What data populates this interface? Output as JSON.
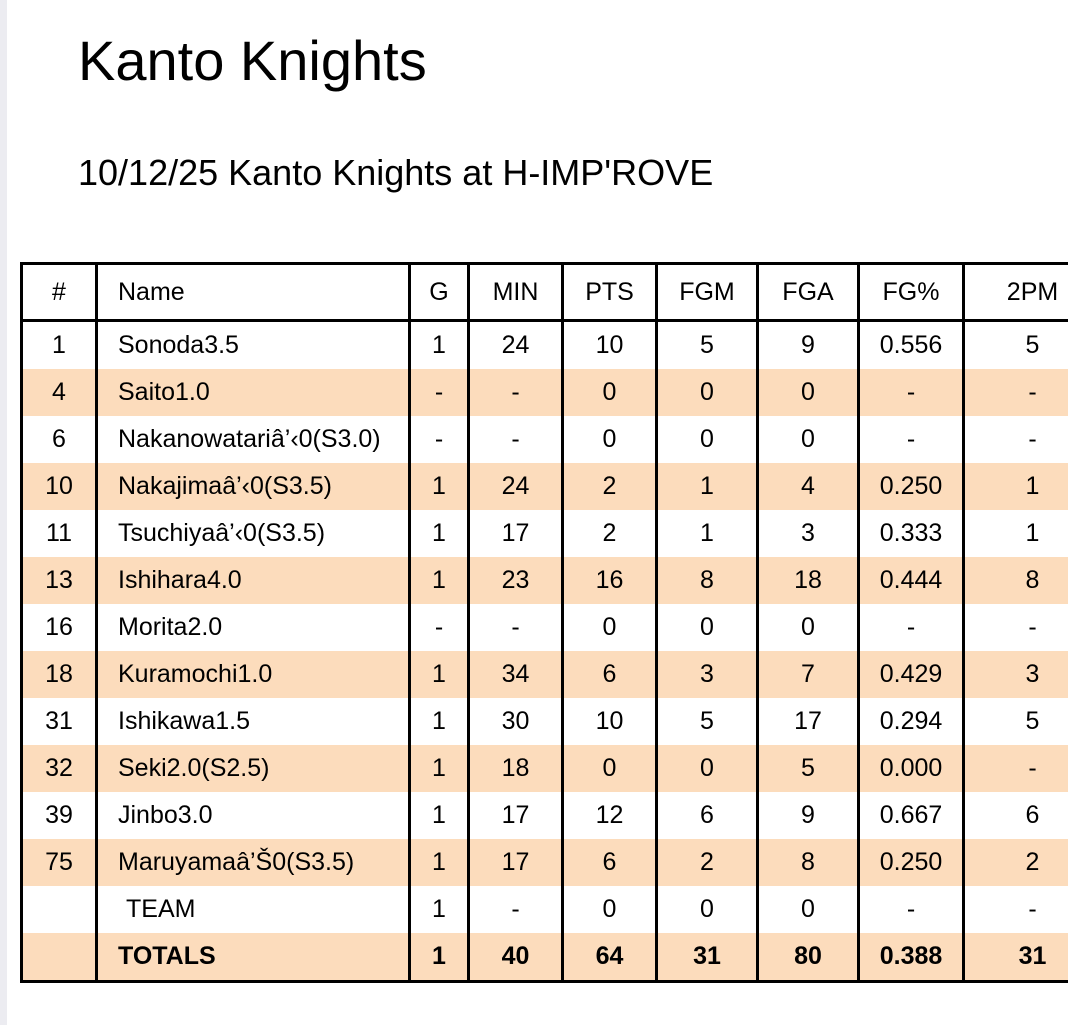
{
  "page": {
    "title": "Kanto Knights",
    "subtitle": "10/12/25 Kanto Knights at H-IMP'ROVE"
  },
  "table": {
    "headers": [
      "#",
      "Name",
      "G",
      "MIN",
      "PTS",
      "FGM",
      "FGA",
      "FG%",
      "2PM"
    ],
    "rows": [
      {
        "num": "1",
        "name": "Sonoda3.5",
        "g": "1",
        "min": "24",
        "pts": "10",
        "fgm": "5",
        "fga": "9",
        "fgp": "0.556",
        "p2m": "5"
      },
      {
        "num": "4",
        "name": "Saito1.0",
        "g": "-",
        "min": "-",
        "pts": "0",
        "fgm": "0",
        "fga": "0",
        "fgp": "-",
        "p2m": "-"
      },
      {
        "num": "6",
        "name": "Nakanowatariâ’‹0(S3.0)",
        "g": "-",
        "min": "-",
        "pts": "0",
        "fgm": "0",
        "fga": "0",
        "fgp": "-",
        "p2m": "-"
      },
      {
        "num": "10",
        "name": "Nakajimaâ’‹0(S3.5)",
        "g": "1",
        "min": "24",
        "pts": "2",
        "fgm": "1",
        "fga": "4",
        "fgp": "0.250",
        "p2m": "1"
      },
      {
        "num": "11",
        "name": "Tsuchiyaâ’‹0(S3.5)",
        "g": "1",
        "min": "17",
        "pts": "2",
        "fgm": "1",
        "fga": "3",
        "fgp": "0.333",
        "p2m": "1"
      },
      {
        "num": "13",
        "name": "Ishihara4.0",
        "g": "1",
        "min": "23",
        "pts": "16",
        "fgm": "8",
        "fga": "18",
        "fgp": "0.444",
        "p2m": "8"
      },
      {
        "num": "16",
        "name": "Morita2.0",
        "g": "-",
        "min": "-",
        "pts": "0",
        "fgm": "0",
        "fga": "0",
        "fgp": "-",
        "p2m": "-"
      },
      {
        "num": "18",
        "name": "Kuramochi1.0",
        "g": "1",
        "min": "34",
        "pts": "6",
        "fgm": "3",
        "fga": "7",
        "fgp": "0.429",
        "p2m": "3"
      },
      {
        "num": "31",
        "name": "Ishikawa1.5",
        "g": "1",
        "min": "30",
        "pts": "10",
        "fgm": "5",
        "fga": "17",
        "fgp": "0.294",
        "p2m": "5"
      },
      {
        "num": "32",
        "name": "Seki2.0(S2.5)",
        "g": "1",
        "min": "18",
        "pts": "0",
        "fgm": "0",
        "fga": "5",
        "fgp": "0.000",
        "p2m": "-"
      },
      {
        "num": "39",
        "name": "Jinbo3.0",
        "g": "1",
        "min": "17",
        "pts": "12",
        "fgm": "6",
        "fga": "9",
        "fgp": "0.667",
        "p2m": "6"
      },
      {
        "num": "75",
        "name": "Maruyamaâ’Š0(S3.5)",
        "g": "1",
        "min": "17",
        "pts": "6",
        "fgm": "2",
        "fga": "8",
        "fgp": "0.250",
        "p2m": "2"
      },
      {
        "num": "",
        "name": "TEAM",
        "g": "1",
        "min": "-",
        "pts": "0",
        "fgm": "0",
        "fga": "0",
        "fgp": "-",
        "p2m": "-"
      }
    ],
    "totals": {
      "num": "",
      "name": "TOTALS",
      "g": "1",
      "min": "40",
      "pts": "64",
      "fgm": "31",
      "fga": "80",
      "fgp": "0.388",
      "p2m": "31"
    }
  }
}
